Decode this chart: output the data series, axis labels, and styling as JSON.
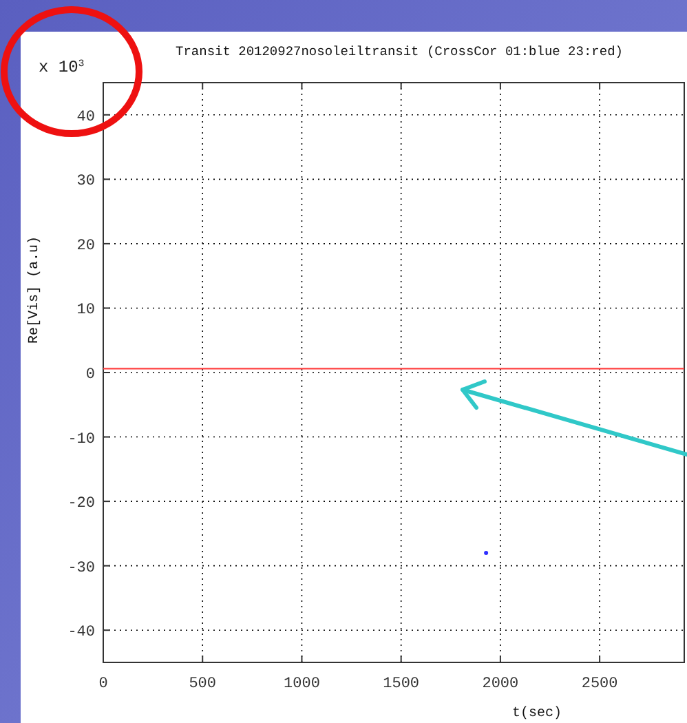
{
  "chart_data": {
    "type": "line",
    "title": "Transit 20120927nosoleiltransit (CrossCor 01:blue  23:red)",
    "xlabel": "t(sec)",
    "ylabel": "Re[Vis] (a.u)",
    "annotations": [
      "x 10$^{3}$"
    ],
    "xlim": [
      0,
      2926
    ],
    "xticks": [
      0,
      500,
      1000,
      1500,
      2000,
      2500
    ],
    "ylim": [
      -45,
      45
    ],
    "yticks": [
      -40,
      -30,
      -20,
      -10,
      0,
      10,
      20,
      30,
      40
    ],
    "grid": true,
    "series": [
      {
        "type": "scatter",
        "color": "#3030ff",
        "x": [
          1928
        ],
        "values": [
          -28
        ],
        "marker": "circle"
      },
      {
        "color": "#ff4040",
        "x": [
          0,
          2926
        ],
        "values": [
          0.6,
          0.6
        ],
        "line_style": "solid"
      }
    ]
  }
}
